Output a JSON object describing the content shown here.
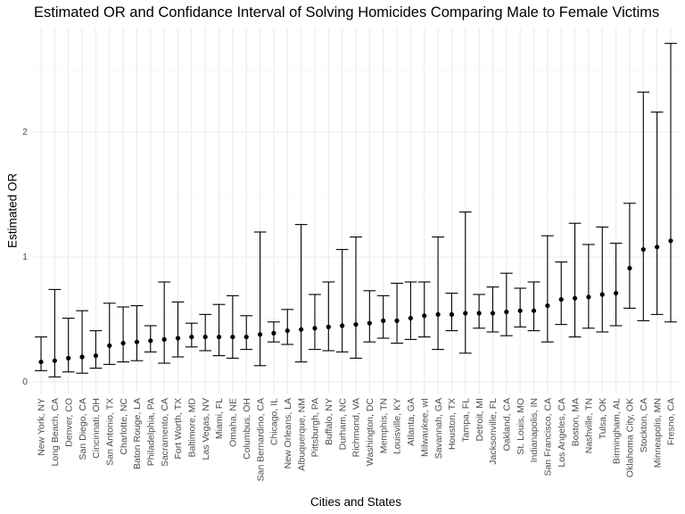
{
  "chart_data": {
    "type": "scatter",
    "title": "Estimated OR and Confidance Interval of Solving Homicides Comparing Male to Female Victims",
    "xlabel": "Cities and States",
    "ylabel": "Estimated OR",
    "categories": [
      "New York, NY",
      "Long Beach, CA",
      "Denver, CO",
      "San Diego, CA",
      "Cincinnati, OH",
      "San Antonio, TX",
      "Charlotte, NC",
      "Baton Rouge, LA",
      "Philadelphia, PA",
      "Sacramento, CA",
      "Fort Worth, TX",
      "Baltimore, MD",
      "Las Vegas, NV",
      "Miami, FL",
      "Omaha, NE",
      "Columbus, OH",
      "San Bernardino, CA",
      "Chicago, IL",
      "New Orleans, LA",
      "Albuquerque, NM",
      "Pittsburgh, PA",
      "Buffalo, NY",
      "Durham, NC",
      "Richmond, VA",
      "Washington, DC",
      "Memphis, TN",
      "Louisville, KY",
      "Atlanta, GA",
      "Milwaukee, wI",
      "Savannah, GA",
      "Houston, TX",
      "Tampa, FL",
      "Detroit, MI",
      "Jacksonville, FL",
      "Oakland, CA",
      "St. Louis, MO",
      "Indianapolis, IN",
      "San Francisco, CA",
      "Los Angeles, CA",
      "Boston, MA",
      "Nashville, TN",
      "Tulsa, OK",
      "Birmingham, AL",
      "Oklahoma City, OK",
      "Stockton, CA",
      "Minneapolis, MN",
      "Fresno, CA"
    ],
    "values": [
      0.16,
      0.17,
      0.19,
      0.2,
      0.21,
      0.29,
      0.31,
      0.32,
      0.33,
      0.34,
      0.35,
      0.36,
      0.36,
      0.36,
      0.36,
      0.36,
      0.38,
      0.39,
      0.41,
      0.42,
      0.43,
      0.44,
      0.45,
      0.46,
      0.47,
      0.49,
      0.49,
      0.51,
      0.53,
      0.54,
      0.54,
      0.55,
      0.55,
      0.55,
      0.56,
      0.57,
      0.57,
      0.61,
      0.66,
      0.67,
      0.68,
      0.7,
      0.71,
      0.91,
      1.06,
      1.08,
      1.13
    ],
    "ci_lower": [
      0.09,
      0.04,
      0.08,
      0.07,
      0.11,
      0.14,
      0.16,
      0.17,
      0.24,
      0.15,
      0.2,
      0.28,
      0.25,
      0.21,
      0.19,
      0.26,
      0.13,
      0.32,
      0.3,
      0.16,
      0.26,
      0.25,
      0.24,
      0.19,
      0.32,
      0.35,
      0.31,
      0.34,
      0.36,
      0.26,
      0.41,
      0.23,
      0.43,
      0.4,
      0.37,
      0.44,
      0.41,
      0.32,
      0.46,
      0.36,
      0.43,
      0.4,
      0.45,
      0.59,
      0.49,
      0.54,
      0.48
    ],
    "ci_upper": [
      0.36,
      0.74,
      0.51,
      0.57,
      0.41,
      0.63,
      0.6,
      0.61,
      0.45,
      0.8,
      0.64,
      0.47,
      0.54,
      0.62,
      0.69,
      0.53,
      1.2,
      0.48,
      0.58,
      1.26,
      0.7,
      0.8,
      1.06,
      1.16,
      0.73,
      0.69,
      0.79,
      0.8,
      0.8,
      1.16,
      0.71,
      1.36,
      0.7,
      0.76,
      0.87,
      0.75,
      0.8,
      1.17,
      0.96,
      1.27,
      1.1,
      1.24,
      1.11,
      1.43,
      2.32,
      2.16,
      2.71
    ],
    "ylim": [
      -0.093,
      2.833
    ],
    "yticks": [
      0,
      1,
      2
    ],
    "grid": true,
    "legend": "none",
    "colors": {
      "point": "#000000",
      "errorbar": "#000000",
      "grid_major": "#EBEBEB",
      "grid_minor": "#F3F3F3",
      "tick_text": "#4D4D4D"
    }
  }
}
